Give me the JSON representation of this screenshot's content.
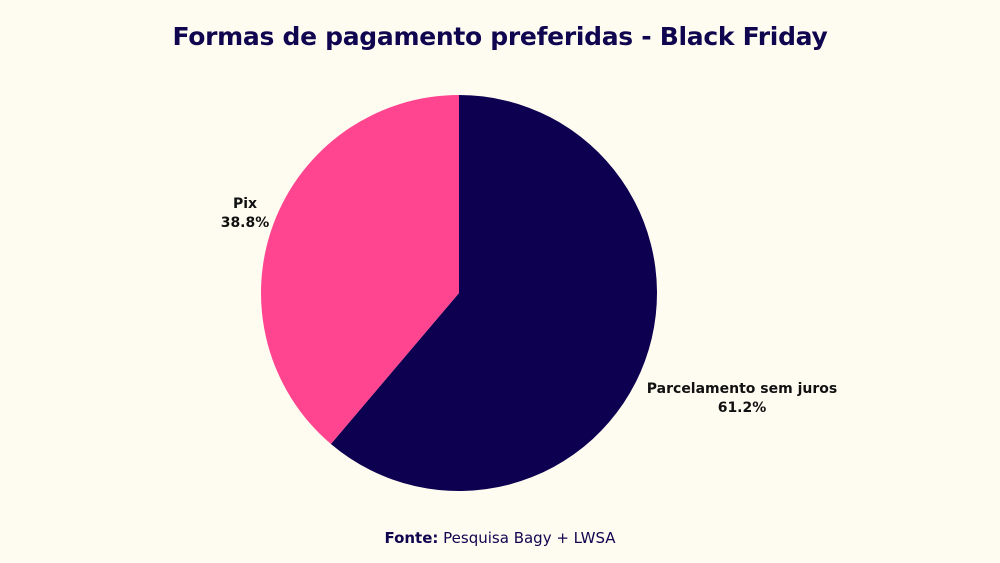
{
  "chart_data": {
    "type": "pie",
    "title": "Formas de pagamento preferidas - Black Friday",
    "slices": [
      {
        "label": "Parcelamento sem juros",
        "value": 61.2,
        "display": "61.2%",
        "color": "#0E0050"
      },
      {
        "label": "Pix",
        "value": 38.8,
        "display": "38.8%",
        "color": "#FF4590"
      }
    ],
    "start_angle": "top, clockwise"
  },
  "footer": {
    "label": "Fonte:",
    "text": " Pesquisa Bagy + LWSA"
  }
}
